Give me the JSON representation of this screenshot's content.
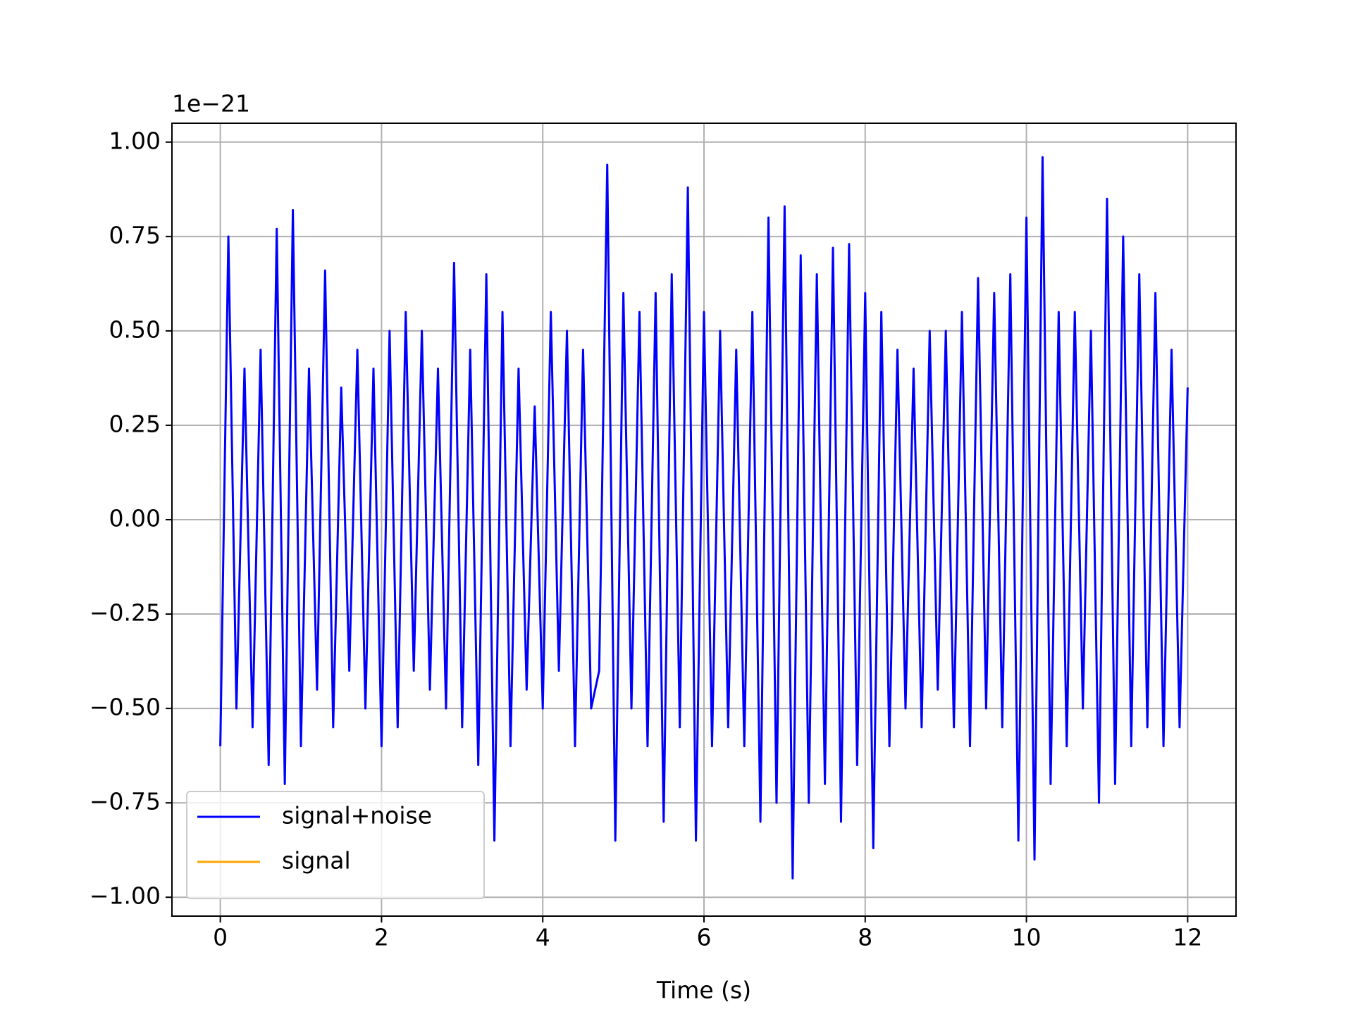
{
  "chart_data": {
    "type": "line",
    "offset_text": "1e−21",
    "xlabel": "Time (s)",
    "x": [
      0,
      0.1,
      0.2,
      0.3,
      0.4,
      0.5,
      0.6,
      0.7,
      0.8,
      0.9,
      1,
      1.1,
      1.2,
      1.3,
      1.4,
      1.5,
      1.6,
      1.7,
      1.8,
      1.9,
      2,
      2.1,
      2.2,
      2.3,
      2.4,
      2.5,
      2.6,
      2.7,
      2.8,
      2.9,
      3,
      3.1,
      3.2,
      3.3,
      3.4,
      3.5,
      3.6,
      3.7,
      3.8,
      3.9,
      4,
      4.1,
      4.2,
      4.3,
      4.4,
      4.5,
      4.6,
      4.7,
      4.8,
      4.9,
      5,
      5.1,
      5.2,
      5.3,
      5.4,
      5.5,
      5.6,
      5.7,
      5.8,
      5.9,
      6,
      6.1,
      6.2,
      6.3,
      6.4,
      6.5,
      6.6,
      6.7,
      6.8,
      6.9,
      7,
      7.1,
      7.2,
      7.3,
      7.4,
      7.5,
      7.6,
      7.7,
      7.8,
      7.9,
      8,
      8.1,
      8.2,
      8.3,
      8.4,
      8.5,
      8.6,
      8.7,
      8.8,
      8.9,
      9,
      9.1,
      9.2,
      9.3,
      9.4,
      9.5,
      9.6,
      9.7,
      9.8,
      9.9,
      10,
      10.1,
      10.2,
      10.3,
      10.4,
      10.5,
      10.6,
      10.7,
      10.8,
      10.9,
      11,
      11.1,
      11.2,
      11.3,
      11.4,
      11.5,
      11.6,
      11.7,
      11.8,
      11.9,
      12
    ],
    "series": [
      {
        "name": "signal+noise",
        "color": "#0000ff",
        "values": [
          -0.6,
          0.75,
          -0.5,
          0.4,
          -0.55,
          0.45,
          -0.65,
          0.77,
          -0.7,
          0.82,
          -0.6,
          0.4,
          -0.45,
          0.66,
          -0.55,
          0.35,
          -0.4,
          0.45,
          -0.5,
          0.4,
          -0.6,
          0.5,
          -0.55,
          0.55,
          -0.4,
          0.5,
          -0.45,
          0.4,
          -0.5,
          0.68,
          -0.55,
          0.45,
          -0.65,
          0.65,
          -0.85,
          0.55,
          -0.6,
          0.4,
          -0.45,
          0.3,
          -0.5,
          0.55,
          -0.4,
          0.5,
          -0.6,
          0.45,
          -0.5,
          -0.4,
          0.94,
          -0.85,
          0.6,
          -0.5,
          0.55,
          -0.6,
          0.6,
          -0.8,
          0.65,
          -0.55,
          0.88,
          -0.85,
          0.55,
          -0.6,
          0.5,
          -0.55,
          0.45,
          -0.6,
          0.55,
          -0.8,
          0.8,
          -0.75,
          0.83,
          -0.95,
          0.7,
          -0.75,
          0.65,
          -0.7,
          0.72,
          -0.8,
          0.73,
          -0.65,
          0.6,
          -0.87,
          0.55,
          -0.6,
          0.45,
          -0.5,
          0.4,
          -0.55,
          0.5,
          -0.45,
          0.5,
          -0.55,
          0.55,
          -0.6,
          0.64,
          -0.5,
          0.6,
          -0.55,
          0.65,
          -0.85,
          0.8,
          -0.9,
          0.96,
          -0.7,
          0.55,
          -0.6,
          0.55,
          -0.5,
          0.5,
          -0.75,
          0.85,
          -0.7,
          0.75,
          -0.6,
          0.65,
          -0.55,
          0.6,
          -0.6,
          0.45,
          -0.55,
          0.35
        ]
      },
      {
        "name": "signal",
        "color": "#ffa500",
        "values": [
          null,
          null,
          null,
          null,
          null,
          null,
          null,
          null,
          null,
          null,
          null,
          null,
          null,
          null,
          null,
          null,
          null,
          null,
          null,
          null,
          null,
          null,
          null,
          null,
          null,
          null,
          null,
          null,
          null,
          null,
          null,
          null,
          null,
          null,
          null,
          null,
          null,
          null,
          null,
          null,
          null,
          null,
          null,
          null,
          null,
          null,
          null,
          null,
          null,
          null,
          null,
          null,
          null,
          null,
          null,
          null,
          null,
          null,
          null,
          null,
          null,
          null,
          null,
          null,
          null,
          null,
          null,
          null,
          null,
          null,
          null,
          null,
          null,
          null,
          null,
          null,
          null,
          null,
          null,
          null,
          null,
          null,
          null,
          null,
          null,
          null,
          null,
          null,
          null,
          null,
          null,
          null,
          null,
          null,
          null,
          null,
          null,
          null,
          null,
          null,
          null,
          null,
          null,
          null,
          null,
          null,
          null,
          null,
          null,
          null,
          null,
          null,
          null,
          null,
          null,
          null,
          null,
          null,
          null,
          null,
          null
        ]
      }
    ],
    "xlim": [
      -0.6,
      12.6
    ],
    "ylim": [
      -1.05,
      1.05
    ],
    "xticks": [
      0,
      2,
      4,
      6,
      8,
      10,
      12
    ],
    "yticks": [
      {
        "value": -1,
        "label": "−1.00"
      },
      {
        "value": -0.75,
        "label": "−0.75"
      },
      {
        "value": -0.5,
        "label": "−0.50"
      },
      {
        "value": -0.25,
        "label": "−0.25"
      },
      {
        "value": 0,
        "label": "0.00"
      },
      0.25,
      {
        "value": 0.5,
        "label": "0.50"
      },
      0.75,
      {
        "value": 1,
        "label": "1.00"
      }
    ],
    "grid": true,
    "legend": "lower left"
  }
}
